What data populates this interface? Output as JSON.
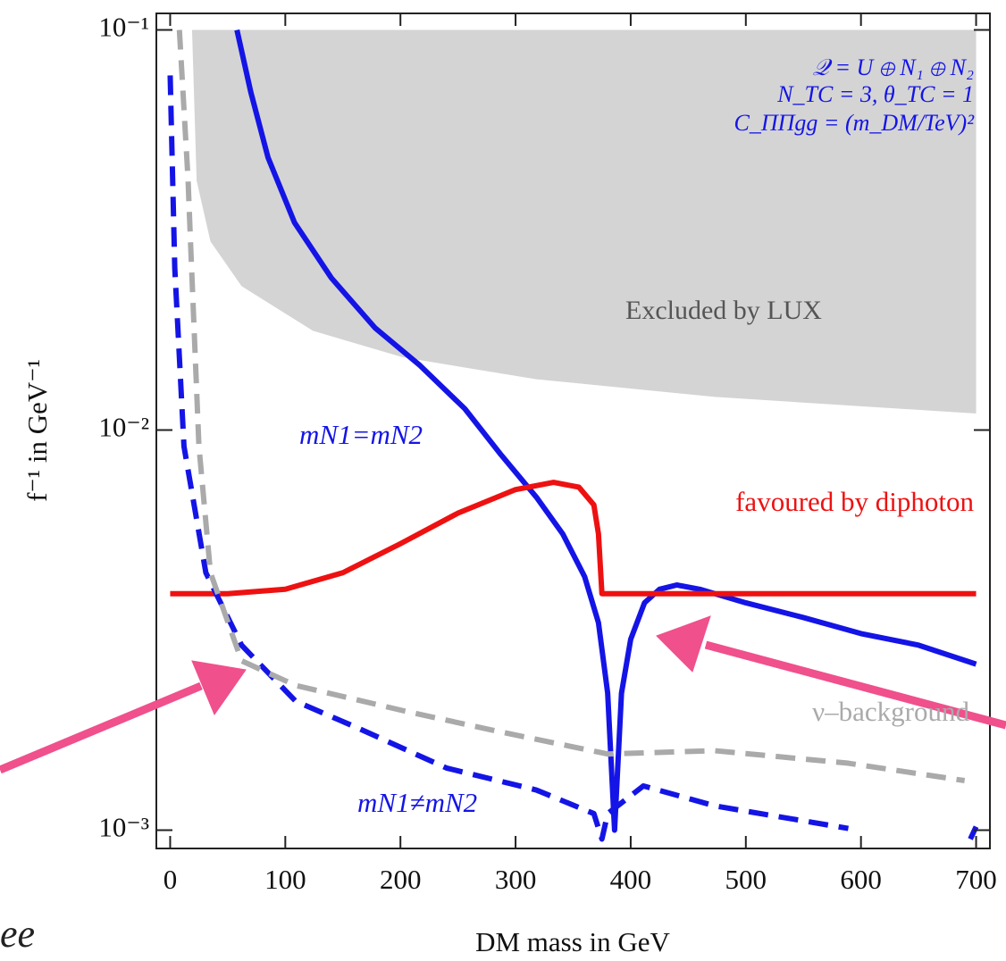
{
  "chart_data": {
    "type": "line",
    "xlabel": "DM mass in GeV",
    "ylabel": "f⁻¹ in GeV⁻¹",
    "xlim": [
      -12,
      712
    ],
    "ylim": [
      0.0009,
      0.11
    ],
    "log_y": true,
    "xticks": [
      0,
      100,
      200,
      300,
      400,
      500,
      600,
      700
    ],
    "yticks": [
      {
        "value": 0.1,
        "label": "10⁻¹"
      },
      {
        "value": 0.01,
        "label": "10⁻²"
      },
      {
        "value": 0.001,
        "label": "10⁻³"
      }
    ],
    "excluded_region": {
      "name": "Excluded by LUX",
      "color": "#d4d4d4",
      "upper": 0.1,
      "x": [
        19,
        23,
        35,
        62,
        124,
        202,
        318,
        473,
        700
      ],
      "values": [
        0.1,
        0.042,
        0.0296,
        0.0229,
        0.0177,
        0.0152,
        0.0134,
        0.0121,
        0.011
      ]
    },
    "series": [
      {
        "name": "mN1=mN2",
        "color": "#1414e6",
        "style": "solid",
        "x": [
          58,
          70,
          85,
          108,
          140,
          178,
          217,
          256,
          287,
          318,
          341,
          360,
          372,
          380,
          386,
          392,
          400,
          412,
          425,
          440,
          460,
          500,
          550,
          600,
          650,
          700
        ],
        "values": [
          0.1,
          0.07,
          0.048,
          0.033,
          0.024,
          0.018,
          0.0145,
          0.0113,
          0.0087,
          0.0068,
          0.0055,
          0.0043,
          0.0033,
          0.0022,
          0.001,
          0.0022,
          0.003,
          0.0037,
          0.004,
          0.0041,
          0.004,
          0.0037,
          0.0034,
          0.0031,
          0.0029,
          0.0026
        ]
      },
      {
        "name": "favoured by diphoton",
        "color": "#ee1111",
        "style": "solid",
        "x": [
          0,
          50,
          100,
          150,
          200,
          250,
          300,
          333,
          355,
          368,
          372,
          375,
          700
        ],
        "values": [
          0.0039,
          0.0039,
          0.004,
          0.0044,
          0.0052,
          0.0062,
          0.0071,
          0.0074,
          0.0072,
          0.0065,
          0.0055,
          0.0039,
          0.0039
        ]
      },
      {
        "name": "mN1≠mN2",
        "color": "#1414e6",
        "style": "dashed",
        "x": [
          0,
          4,
          12,
          31,
          62,
          109,
          163,
          240,
          318,
          368,
          375,
          380,
          411,
          473,
          589,
          650,
          695,
          700
        ],
        "values": [
          0.077,
          0.0254,
          0.0091,
          0.0044,
          0.0029,
          0.0021,
          0.0018,
          0.00143,
          0.00126,
          0.0011,
          0.00095,
          0.0011,
          0.00129,
          0.00115,
          0.00101,
          null,
          0.00095,
          0.00102
        ]
      },
      {
        "name": "ν–background",
        "color": "#aaaaaa",
        "style": "dashed",
        "x": [
          8,
          15.5,
          18,
          25,
          35,
          62,
          109,
          202,
          279,
          380,
          473,
          589,
          690
        ],
        "values": [
          0.1,
          0.0425,
          0.028,
          0.0091,
          0.0044,
          0.00265,
          0.0023,
          0.00199,
          0.00178,
          0.00155,
          0.00158,
          0.00147,
          0.00133
        ]
      }
    ],
    "annotations": [
      "𝒬 = U ⊕ N₁ ⊕ N₂",
      "N_TC = 3, θ_TC = 1",
      "C_ΠΠgg = (m_DM/TeV)²",
      "ee"
    ]
  }
}
